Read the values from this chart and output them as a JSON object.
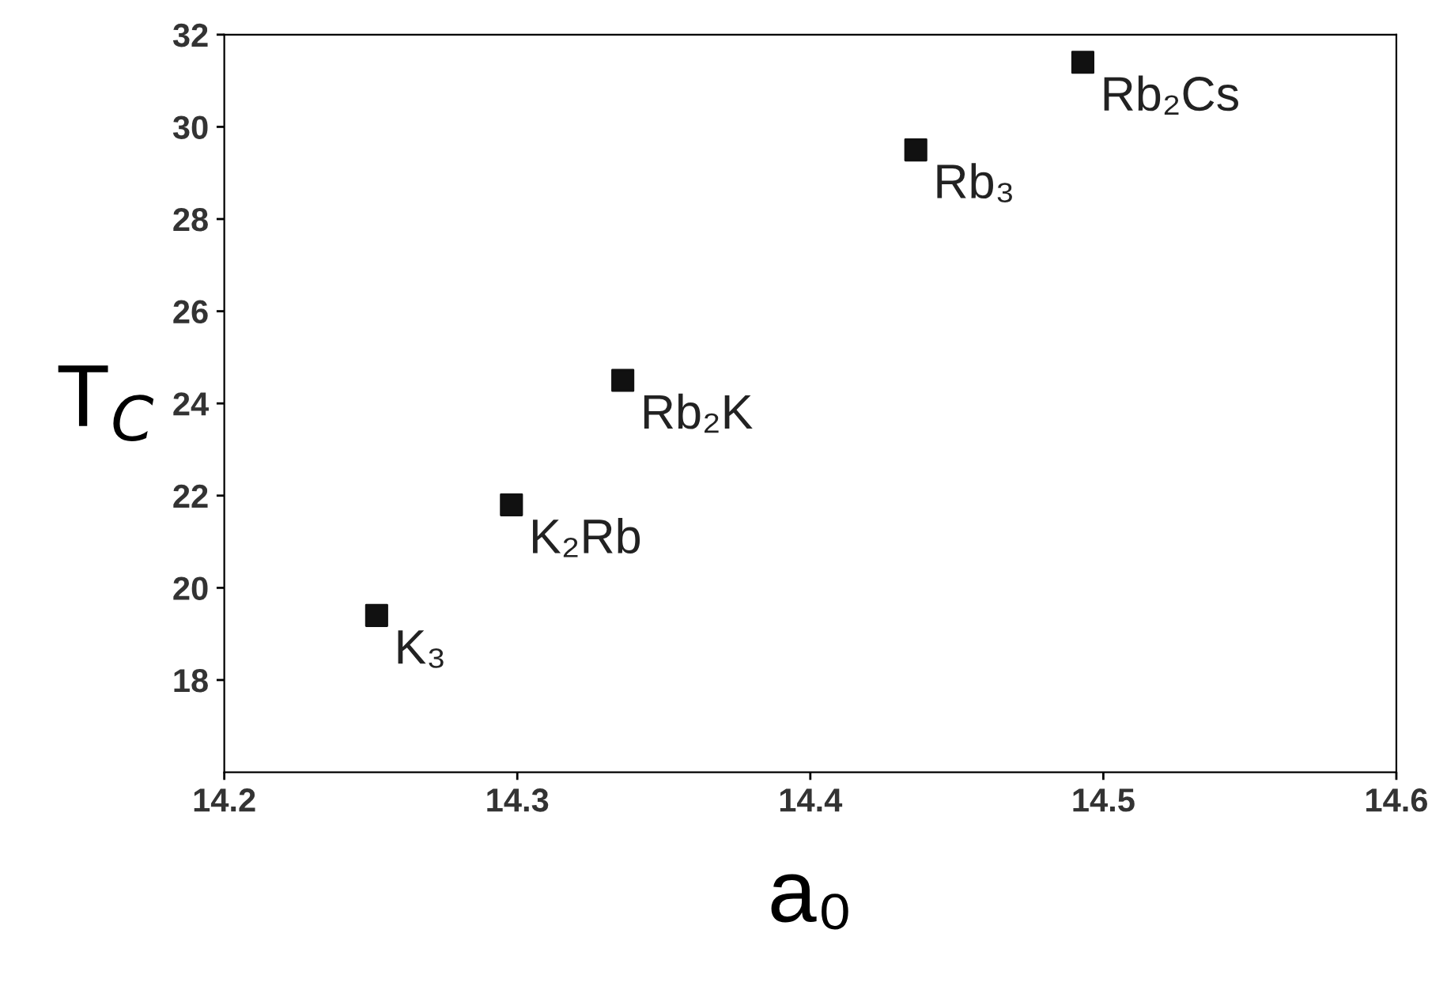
{
  "chart_data": {
    "type": "scatter",
    "xlabel": "a₀",
    "ylabel": "T$_{C}$",
    "x": [
      14.252,
      14.298,
      14.336,
      14.436,
      14.493
    ],
    "values": [
      19.4,
      21.8,
      24.5,
      29.5,
      31.4
    ],
    "color": "#111111",
    "marker": "square",
    "grid": false,
    "xlim": [
      14.2,
      14.6
    ],
    "xticks": [
      14.2,
      14.3,
      14.4,
      14.5,
      14.6
    ],
    "ylim": [
      16,
      32
    ],
    "yticks": [
      18,
      20,
      22,
      24,
      26,
      28,
      30,
      32
    ],
    "annotations": [
      {
        "text": "K₃",
        "x": 14.252,
        "y": 19.4
      },
      {
        "text": "K₂Rb",
        "x": 14.298,
        "y": 21.8
      },
      {
        "text": "Rb₂K",
        "x": 14.336,
        "y": 24.5
      },
      {
        "text": "Rb₃",
        "x": 14.436,
        "y": 29.5
      },
      {
        "text": "Rb₂Cs",
        "x": 14.493,
        "y": 31.4
      }
    ]
  }
}
